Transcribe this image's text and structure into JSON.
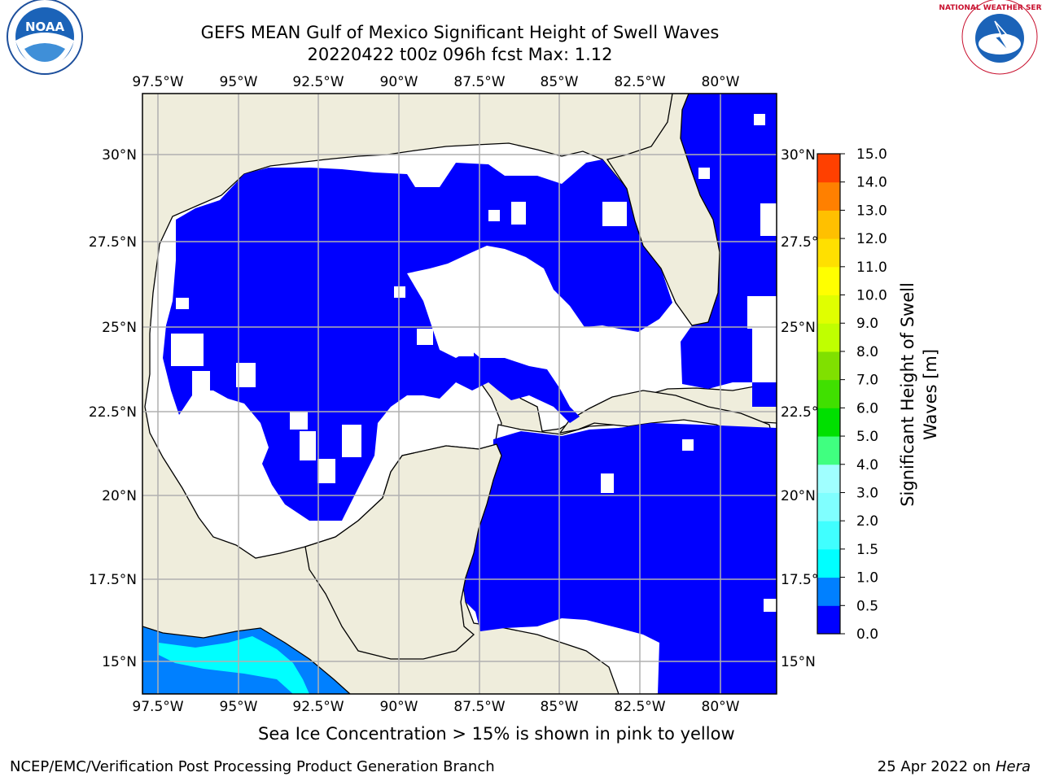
{
  "title_line1": "GEFS MEAN Gulf of Mexico Significant Height of Swell Waves",
  "title_line2": "20220422 t00z 096h fcst   Max: 1.12",
  "note": "Sea Ice Concentration > 15% is shown in pink to yellow",
  "footer_left": "NCEP/EMC/Verification Post Processing Product Generation Branch",
  "footer_right_date": "25 Apr 2022 on ",
  "footer_right_host": "Hera",
  "logos": {
    "noaa": {
      "text": "NOAA",
      "ring_text": "NATIONAL OCEANIC AND ATMOSPHERIC ADMINISTRATION · U.S. DEPARTMENT OF COMMERCE"
    },
    "nws": {
      "ring_text": "NATIONAL WEATHER SERVICE"
    }
  },
  "map": {
    "lon_ticks": [
      "97.5°W",
      "95°W",
      "92.5°W",
      "90°W",
      "87.5°W",
      "85°W",
      "82.5°W",
      "80°W"
    ],
    "lat_ticks_left": [
      "30°N",
      "27.5°N",
      "25°N",
      "22.5°N",
      "20°N",
      "17.5°N",
      "15°N"
    ],
    "lat_ticks_right": [
      "30°N",
      "27.5°N",
      "25°N",
      "22.5°N",
      "20°N",
      "17.5°N",
      "15°N"
    ],
    "colors": {
      "land": "#efeddc",
      "no_data": "#ffffff",
      "grid": "#b0b0b0",
      "coast": "#000000"
    }
  },
  "colorbar": {
    "title_line1": "Significant Height of Swell",
    "title_line2": "Waves [m]",
    "labels": [
      "0.0",
      "0.5",
      "1.0",
      "1.5",
      "2.0",
      "3.0",
      "4.0",
      "5.0",
      "6.0",
      "7.0",
      "8.0",
      "9.0",
      "10.0",
      "11.0",
      "12.0",
      "13.0",
      "14.0",
      "15.0"
    ],
    "colors": [
      "#0000ff",
      "#0080ff",
      "#00ffff",
      "#40ffff",
      "#80ffff",
      "#a0ffff",
      "#40ff80",
      "#00e000",
      "#40e000",
      "#80e000",
      "#c0ff00",
      "#e0ff00",
      "#ffff00",
      "#ffe000",
      "#ffc000",
      "#ff8000",
      "#ff4000",
      "#ff0000"
    ]
  }
}
